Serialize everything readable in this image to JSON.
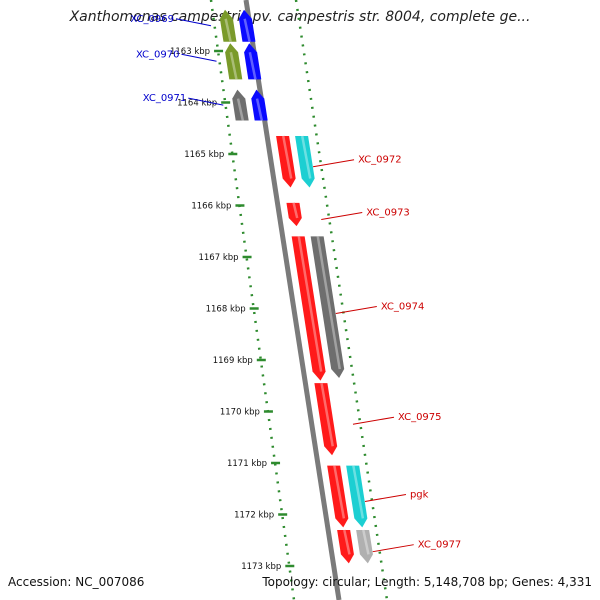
{
  "title": "Xanthomonas campestris pv. campestris str. 8004, complete ge...",
  "footer": {
    "accession": "Accession: NC_007086",
    "stats": "Topology: circular; Length: 5,148,708 bp; Genes: 4,331"
  },
  "colors": {
    "backbone": "#7a7a7a",
    "ruler": "#2e8b2e",
    "tick_label": "#111111",
    "label_blue": "#0000cc",
    "label_red": "#cc0000",
    "red": "#ff1a1a",
    "blue": "#0a0aff",
    "cyan": "#1ccfd2",
    "olive": "#7a9a2a",
    "gray": "#6e6e6e",
    "lightgray": "#b0b0b0"
  },
  "ticks": [
    {
      "label": "1163 kbp",
      "pos": 1163
    },
    {
      "label": "1164 kbp",
      "pos": 1164
    },
    {
      "label": "1165 kbp",
      "pos": 1165
    },
    {
      "label": "1166 kbp",
      "pos": 1166
    },
    {
      "label": "1167 kbp",
      "pos": 1167
    },
    {
      "label": "1168 kbp",
      "pos": 1168
    },
    {
      "label": "1169 kbp",
      "pos": 1169
    },
    {
      "label": "1170 kbp",
      "pos": 1170
    },
    {
      "label": "1171 kbp",
      "pos": 1171
    },
    {
      "label": "1172 kbp",
      "pos": 1172
    },
    {
      "label": "1173 kbp",
      "pos": 1173
    }
  ],
  "genes": [
    {
      "id": "XC_0969",
      "label": "XC_0969",
      "start": 1162.2,
      "end": 1162.82,
      "strand": "left",
      "track": 0,
      "color": "olive"
    },
    {
      "id": "XC_0969b",
      "label": "",
      "start": 1162.2,
      "end": 1162.82,
      "strand": "left",
      "track": 1,
      "color": "blue"
    },
    {
      "id": "XC_0970",
      "label": "XC_0970",
      "start": 1162.85,
      "end": 1163.55,
      "strand": "left",
      "track": 0,
      "color": "olive"
    },
    {
      "id": "XC_0970b",
      "label": "",
      "start": 1162.85,
      "end": 1163.55,
      "strand": "left",
      "track": 1,
      "color": "blue"
    },
    {
      "id": "XC_0971",
      "label": "XC_0971",
      "start": 1163.75,
      "end": 1164.35,
      "strand": "left",
      "track": 0,
      "color": "gray"
    },
    {
      "id": "XC_0971b",
      "label": "",
      "start": 1163.75,
      "end": 1164.35,
      "strand": "left",
      "track": 1,
      "color": "blue"
    },
    {
      "id": "XC_0972",
      "label": "XC_0972",
      "start": 1164.65,
      "end": 1165.65,
      "strand": "right",
      "track": 0,
      "color": "red"
    },
    {
      "id": "XC_0972b",
      "label": "",
      "start": 1164.65,
      "end": 1165.65,
      "strand": "right",
      "track": 1,
      "color": "cyan"
    },
    {
      "id": "XC_0973",
      "label": "XC_0973",
      "start": 1165.95,
      "end": 1166.4,
      "strand": "right",
      "track": 0,
      "color": "red"
    },
    {
      "id": "XC_0974",
      "label": "XC_0974",
      "start": 1166.6,
      "end": 1169.4,
      "strand": "right",
      "track": 0,
      "color": "red"
    },
    {
      "id": "XC_0974b",
      "label": "",
      "start": 1166.6,
      "end": 1169.35,
      "strand": "right",
      "track": 1,
      "color": "gray"
    },
    {
      "id": "XC_0975",
      "label": "XC_0975",
      "start": 1169.45,
      "end": 1170.85,
      "strand": "right",
      "track": 0,
      "color": "red"
    },
    {
      "id": "pgk",
      "label": "pgk",
      "start": 1171.05,
      "end": 1172.25,
      "strand": "right",
      "track": 0,
      "color": "red"
    },
    {
      "id": "pgkb",
      "label": "",
      "start": 1171.05,
      "end": 1172.25,
      "strand": "right",
      "track": 1,
      "color": "cyan"
    },
    {
      "id": "XC_0977",
      "label": "XC_0977",
      "start": 1172.3,
      "end": 1172.95,
      "strand": "right",
      "track": 0,
      "color": "red"
    },
    {
      "id": "XC_0977b",
      "label": "",
      "start": 1172.3,
      "end": 1172.95,
      "strand": "right",
      "track": 1,
      "color": "lightgray"
    }
  ]
}
